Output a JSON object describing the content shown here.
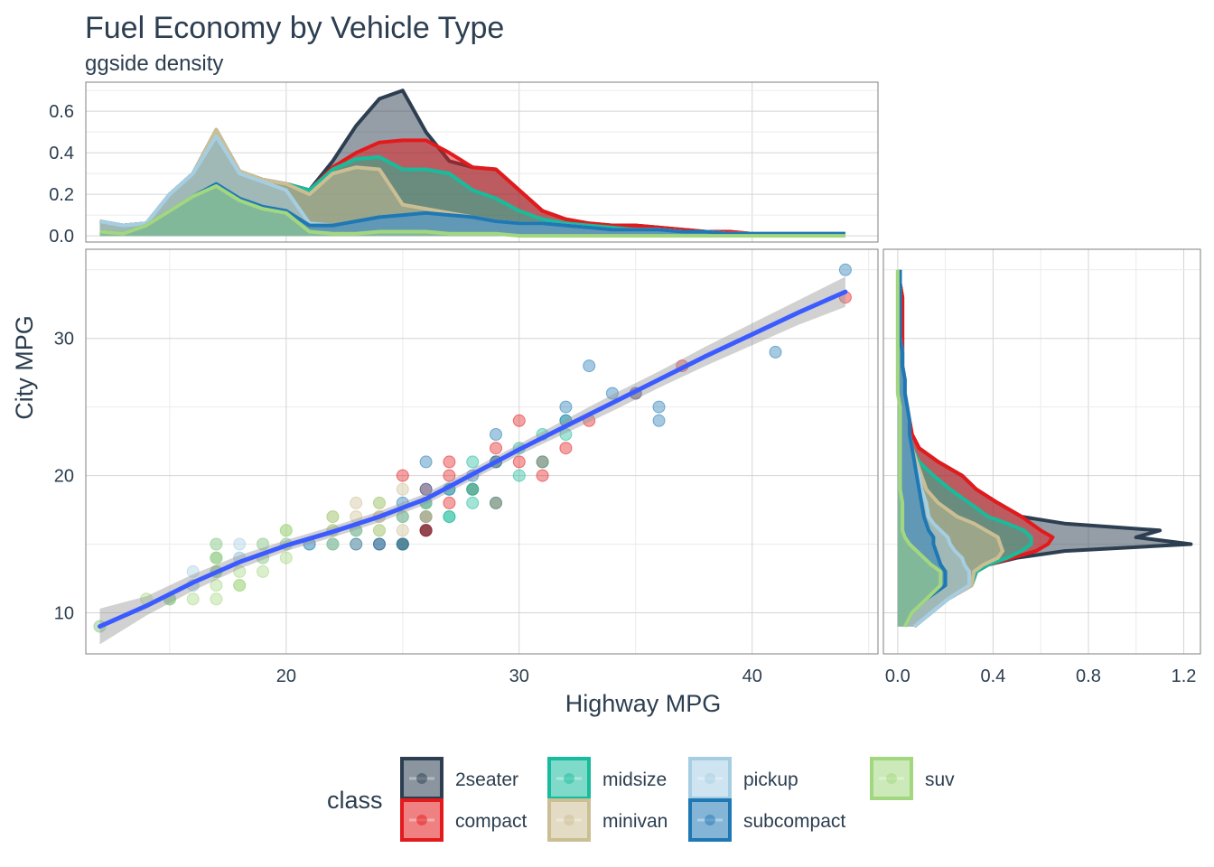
{
  "chart_data": {
    "type": "scatter",
    "title": "Fuel Economy by Vehicle Type",
    "subtitle": "ggside density",
    "xlabel": "Highway MPG",
    "ylabel": "City MPG",
    "xlim": [
      11.4,
      45.4
    ],
    "ylim": [
      7.0,
      36.5
    ],
    "x_ticks": [
      20,
      30,
      40
    ],
    "y_ticks": [
      10,
      20,
      30
    ],
    "top_side": {
      "ylim": [
        -0.03,
        0.74
      ],
      "y_ticks": [
        "0.0",
        "0.2",
        "0.4",
        "0.6"
      ]
    },
    "right_side": {
      "xlim": [
        -0.06,
        1.27
      ],
      "x_ticks": [
        "0.0",
        "0.4",
        "0.8",
        "1.2"
      ]
    },
    "legend": {
      "title": "class",
      "position": "bottom",
      "entries": [
        {
          "label": "2seater",
          "color": "#2c3e50"
        },
        {
          "label": "compact",
          "color": "#e31a1c"
        },
        {
          "label": "midsize",
          "color": "#18bc9c"
        },
        {
          "label": "minivan",
          "color": "#ccbe93"
        },
        {
          "label": "pickup",
          "color": "#a6cee3"
        },
        {
          "label": "subcompact",
          "color": "#1f78b4"
        },
        {
          "label": "suv",
          "color": "#a3d77f"
        }
      ]
    },
    "series_points": [
      {
        "name": "2seater",
        "points": [
          [
            26,
            16
          ],
          [
            25,
            15
          ],
          [
            26,
            16
          ],
          [
            24,
            15
          ],
          [
            26,
            16
          ]
        ]
      },
      {
        "name": "compact",
        "points": [
          [
            29,
            18
          ],
          [
            29,
            21
          ],
          [
            31,
            20
          ],
          [
            30,
            21
          ],
          [
            26,
            16
          ],
          [
            27,
            18
          ],
          [
            26,
            17
          ],
          [
            25,
            15
          ],
          [
            28,
            19
          ],
          [
            25,
            20
          ],
          [
            26,
            19
          ],
          [
            27,
            20
          ],
          [
            29,
            22
          ],
          [
            33,
            24
          ],
          [
            35,
            26
          ],
          [
            37,
            28
          ],
          [
            44,
            33
          ],
          [
            31,
            21
          ],
          [
            32,
            22
          ],
          [
            30,
            24
          ],
          [
            27,
            21
          ]
        ]
      },
      {
        "name": "midsize",
        "points": [
          [
            28,
            19
          ],
          [
            27,
            19
          ],
          [
            31,
            23
          ],
          [
            31,
            21
          ],
          [
            30,
            22
          ],
          [
            29,
            18
          ],
          [
            26,
            17
          ],
          [
            28,
            18
          ],
          [
            27,
            17
          ],
          [
            26,
            18
          ],
          [
            25,
            15
          ],
          [
            27,
            17
          ],
          [
            28,
            19
          ],
          [
            28,
            21
          ],
          [
            32,
            23
          ],
          [
            29,
            21
          ],
          [
            30,
            20
          ],
          [
            32,
            24
          ]
        ]
      },
      {
        "name": "minivan",
        "points": [
          [
            24,
            17
          ],
          [
            25,
            19
          ],
          [
            22,
            16
          ],
          [
            23,
            15
          ],
          [
            24,
            16
          ],
          [
            23,
            17
          ],
          [
            22,
            17
          ],
          [
            24,
            18
          ],
          [
            23,
            18
          ],
          [
            26,
            17
          ],
          [
            25,
            16
          ],
          [
            24,
            17
          ]
        ]
      },
      {
        "name": "pickup",
        "points": [
          [
            15,
            11
          ],
          [
            17,
            14
          ],
          [
            16,
            12
          ],
          [
            15,
            11
          ],
          [
            18,
            14
          ],
          [
            17,
            13
          ],
          [
            15,
            11
          ],
          [
            12,
            9
          ],
          [
            19,
            15
          ],
          [
            17,
            13
          ],
          [
            16,
            12
          ],
          [
            18,
            15
          ],
          [
            17,
            14
          ],
          [
            20,
            15
          ],
          [
            19,
            14
          ],
          [
            17,
            15
          ],
          [
            16,
            13
          ],
          [
            21,
            15
          ],
          [
            18,
            14
          ],
          [
            17,
            13
          ],
          [
            15,
            11
          ]
        ]
      },
      {
        "name": "subcompact",
        "points": [
          [
            26,
            18
          ],
          [
            25,
            18
          ],
          [
            25,
            15
          ],
          [
            23,
            16
          ],
          [
            26,
            19
          ],
          [
            29,
            23
          ],
          [
            26,
            21
          ],
          [
            36,
            24
          ],
          [
            36,
            25
          ],
          [
            32,
            24
          ],
          [
            33,
            28
          ],
          [
            32,
            25
          ],
          [
            34,
            26
          ],
          [
            35,
            26
          ],
          [
            41,
            29
          ],
          [
            44,
            35
          ],
          [
            28,
            20
          ],
          [
            29,
            21
          ],
          [
            27,
            19
          ],
          [
            25,
            17
          ],
          [
            24,
            15
          ],
          [
            23,
            15
          ],
          [
            22,
            15
          ],
          [
            21,
            15
          ]
        ]
      },
      {
        "name": "suv",
        "points": [
          [
            12,
            9
          ],
          [
            15,
            11
          ],
          [
            16,
            11
          ],
          [
            17,
            11
          ],
          [
            14,
            11
          ],
          [
            17,
            13
          ],
          [
            18,
            12
          ],
          [
            17,
            14
          ],
          [
            19,
            13
          ],
          [
            17,
            15
          ],
          [
            19,
            15
          ],
          [
            20,
            14
          ],
          [
            20,
            16
          ],
          [
            22,
            16
          ],
          [
            22,
            15
          ],
          [
            24,
            16
          ],
          [
            25,
            17
          ],
          [
            22,
            17
          ],
          [
            24,
            18
          ],
          [
            20,
            15
          ],
          [
            19,
            14
          ],
          [
            18,
            13
          ],
          [
            17,
            14
          ],
          [
            23,
            16
          ],
          [
            26,
            18
          ],
          [
            18,
            12
          ],
          [
            15,
            11
          ],
          [
            17,
            12
          ],
          [
            20,
            16
          ],
          [
            17,
            13
          ]
        ]
      }
    ],
    "smooth_line": {
      "color": "#3b5bff",
      "x": [
        12,
        14,
        16,
        18,
        20,
        22,
        24,
        26,
        28,
        30,
        32,
        34,
        36,
        38,
        40,
        42,
        44
      ],
      "y": [
        9.0,
        10.5,
        12.2,
        13.7,
        14.9,
        15.9,
        17.0,
        18.3,
        20.1,
        21.9,
        23.6,
        25.3,
        27.0,
        28.7,
        30.3,
        31.9,
        33.4
      ],
      "band": [
        1.3,
        0.7,
        0.6,
        0.5,
        0.4,
        0.4,
        0.4,
        0.4,
        0.4,
        0.4,
        0.5,
        0.6,
        0.6,
        0.7,
        0.8,
        0.9,
        1.1
      ]
    },
    "top_density": {
      "grid": [
        12,
        13,
        14,
        15,
        16,
        17,
        18,
        19,
        20,
        21,
        22,
        23,
        24,
        25,
        26,
        27,
        28,
        29,
        30,
        31,
        32,
        33,
        34,
        35,
        36,
        37,
        38,
        39,
        40,
        41,
        42,
        43,
        44
      ],
      "stacked_tops": {
        "suv": [
          0.02,
          0.01,
          0.05,
          0.12,
          0.19,
          0.24,
          0.17,
          0.13,
          0.11,
          0.02,
          0.01,
          0.01,
          0.02,
          0.02,
          0.02,
          0.01,
          0.01,
          0.01,
          0.0,
          0.0,
          0.0,
          0.0,
          0.0,
          0.0,
          0.0,
          0.0,
          0.0,
          0.0,
          0.0,
          0.0,
          0.0,
          0.0,
          0.0
        ],
        "subcompact": [
          0.02,
          0.01,
          0.05,
          0.12,
          0.19,
          0.25,
          0.18,
          0.14,
          0.12,
          0.05,
          0.05,
          0.07,
          0.09,
          0.1,
          0.11,
          0.1,
          0.09,
          0.07,
          0.06,
          0.06,
          0.05,
          0.04,
          0.03,
          0.03,
          0.03,
          0.02,
          0.02,
          0.01,
          0.01,
          0.01,
          0.01,
          0.01,
          0.01
        ],
        "pickup": [
          0.07,
          0.05,
          0.06,
          0.2,
          0.3,
          0.48,
          0.3,
          0.26,
          0.22,
          0.06,
          0.05,
          0.07,
          0.09,
          0.1,
          0.11,
          0.1,
          0.09,
          0.07,
          0.06,
          0.06,
          0.05,
          0.04,
          0.03,
          0.03,
          0.03,
          0.02,
          0.02,
          0.01,
          0.01,
          0.01,
          0.01,
          0.01,
          0.01
        ],
        "minivan": [
          0.07,
          0.05,
          0.06,
          0.2,
          0.3,
          0.51,
          0.31,
          0.27,
          0.25,
          0.2,
          0.3,
          0.33,
          0.32,
          0.15,
          0.13,
          0.11,
          0.09,
          0.07,
          0.06,
          0.06,
          0.05,
          0.04,
          0.03,
          0.03,
          0.03,
          0.02,
          0.02,
          0.01,
          0.01,
          0.01,
          0.01,
          0.01,
          0.01
        ],
        "midsize": [
          0.07,
          0.05,
          0.06,
          0.2,
          0.3,
          0.51,
          0.31,
          0.27,
          0.25,
          0.22,
          0.32,
          0.37,
          0.38,
          0.32,
          0.32,
          0.3,
          0.22,
          0.18,
          0.12,
          0.08,
          0.06,
          0.05,
          0.04,
          0.03,
          0.03,
          0.02,
          0.02,
          0.01,
          0.01,
          0.01,
          0.01,
          0.01,
          0.01
        ],
        "compact": [
          0.07,
          0.05,
          0.06,
          0.2,
          0.3,
          0.51,
          0.31,
          0.27,
          0.25,
          0.22,
          0.33,
          0.4,
          0.45,
          0.46,
          0.46,
          0.4,
          0.33,
          0.32,
          0.22,
          0.12,
          0.08,
          0.06,
          0.05,
          0.05,
          0.04,
          0.03,
          0.02,
          0.02,
          0.01,
          0.01,
          0.01,
          0.01,
          0.01
        ],
        "2seater": [
          0.07,
          0.05,
          0.06,
          0.2,
          0.3,
          0.51,
          0.31,
          0.27,
          0.25,
          0.22,
          0.36,
          0.53,
          0.66,
          0.7,
          0.5,
          0.36,
          0.33,
          0.32,
          0.22,
          0.12,
          0.08,
          0.06,
          0.05,
          0.05,
          0.04,
          0.03,
          0.02,
          0.02,
          0.01,
          0.01,
          0.01,
          0.01,
          0.01
        ]
      }
    },
    "right_density": {
      "grid": [
        9,
        10,
        11,
        12,
        13,
        13.5,
        14,
        14.5,
        15,
        15.5,
        16,
        16.5,
        17,
        18,
        19,
        20,
        21,
        22,
        23,
        24,
        25,
        26,
        27,
        28,
        29,
        30,
        31,
        32,
        33,
        34,
        35
      ],
      "stacked_tops": {
        "suv": [
          0.03,
          0.06,
          0.12,
          0.18,
          0.18,
          0.14,
          0.11,
          0.08,
          0.05,
          0.03,
          0.02,
          0.02,
          0.02,
          0.02,
          0.01,
          0.01,
          0.01,
          0.01,
          0.01,
          0.01,
          0.01,
          0.0,
          0.0,
          0.0,
          0.0,
          0.0,
          0.0,
          0.0,
          0.0,
          0.0,
          0.0
        ],
        "subcompact": [
          0.03,
          0.06,
          0.12,
          0.2,
          0.2,
          0.18,
          0.17,
          0.16,
          0.15,
          0.15,
          0.13,
          0.12,
          0.11,
          0.1,
          0.09,
          0.08,
          0.07,
          0.06,
          0.05,
          0.05,
          0.04,
          0.03,
          0.03,
          0.02,
          0.02,
          0.01,
          0.01,
          0.01,
          0.01,
          0.01,
          0.01
        ],
        "pickup": [
          0.07,
          0.14,
          0.21,
          0.3,
          0.3,
          0.28,
          0.27,
          0.24,
          0.22,
          0.21,
          0.18,
          0.15,
          0.13,
          0.12,
          0.1,
          0.09,
          0.07,
          0.06,
          0.05,
          0.05,
          0.04,
          0.03,
          0.03,
          0.02,
          0.02,
          0.01,
          0.01,
          0.01,
          0.01,
          0.01,
          0.01
        ],
        "minivan": [
          0.07,
          0.14,
          0.21,
          0.31,
          0.32,
          0.36,
          0.42,
          0.44,
          0.43,
          0.42,
          0.37,
          0.32,
          0.25,
          0.17,
          0.12,
          0.1,
          0.08,
          0.06,
          0.05,
          0.05,
          0.04,
          0.03,
          0.03,
          0.02,
          0.02,
          0.01,
          0.01,
          0.01,
          0.01,
          0.01,
          0.01
        ],
        "midsize": [
          0.07,
          0.14,
          0.21,
          0.31,
          0.33,
          0.38,
          0.46,
          0.52,
          0.56,
          0.56,
          0.53,
          0.46,
          0.38,
          0.3,
          0.22,
          0.15,
          0.09,
          0.06,
          0.05,
          0.05,
          0.04,
          0.03,
          0.03,
          0.02,
          0.02,
          0.01,
          0.01,
          0.01,
          0.01,
          0.01,
          0.01
        ],
        "compact": [
          0.07,
          0.14,
          0.21,
          0.31,
          0.33,
          0.38,
          0.48,
          0.58,
          0.63,
          0.65,
          0.6,
          0.56,
          0.52,
          0.42,
          0.33,
          0.27,
          0.17,
          0.09,
          0.06,
          0.05,
          0.04,
          0.03,
          0.03,
          0.02,
          0.02,
          0.02,
          0.02,
          0.02,
          0.02,
          0.01,
          0.01
        ],
        "2seater": [
          0.07,
          0.14,
          0.21,
          0.31,
          0.33,
          0.38,
          0.5,
          0.7,
          1.23,
          1.0,
          1.1,
          0.7,
          0.52,
          0.42,
          0.33,
          0.27,
          0.17,
          0.09,
          0.06,
          0.05,
          0.04,
          0.03,
          0.03,
          0.02,
          0.02,
          0.02,
          0.02,
          0.02,
          0.02,
          0.01,
          0.01
        ]
      }
    }
  }
}
